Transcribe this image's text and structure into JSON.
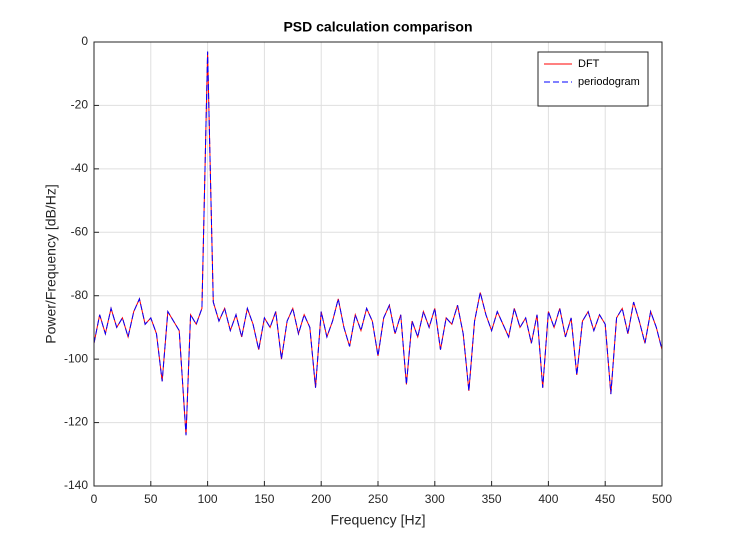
{
  "chart_data": {
    "type": "line",
    "title": "PSD calculation comparison",
    "x_label": "Frequency [Hz]",
    "y_label": "Power/Frequency [dB/Hz]",
    "x": [
      0,
      5,
      10,
      15,
      20,
      25,
      30,
      35,
      40,
      45,
      50,
      55,
      60,
      65,
      70,
      75,
      81,
      85,
      90,
      95,
      100,
      105,
      110,
      115,
      120,
      125,
      130,
      135,
      140,
      145,
      150,
      155,
      160,
      165,
      170,
      175,
      180,
      185,
      190,
      195,
      200,
      205,
      210,
      215,
      220,
      225,
      230,
      235,
      240,
      245,
      250,
      255,
      260,
      265,
      270,
      275,
      280,
      285,
      290,
      295,
      300,
      305,
      310,
      315,
      320,
      325,
      330,
      335,
      340,
      345,
      350,
      355,
      360,
      365,
      370,
      375,
      380,
      385,
      390,
      395,
      400,
      405,
      410,
      415,
      420,
      425,
      430,
      435,
      440,
      445,
      450,
      455,
      460,
      465,
      470,
      475,
      480,
      485,
      490,
      495,
      500
    ],
    "series": [
      {
        "name": "DFT",
        "color": "#ff0000",
        "dash": false,
        "values": [
          -95,
          -86,
          -92,
          -84,
          -90,
          -87,
          -93,
          -85,
          -81,
          -89,
          -87,
          -92,
          -107,
          -85,
          -88,
          -91,
          -124,
          -86,
          -89,
          -84,
          -3,
          -82,
          -88,
          -84,
          -91,
          -86,
          -93,
          -84,
          -89,
          -97,
          -87,
          -90,
          -85,
          -100,
          -88,
          -84,
          -92,
          -86,
          -90,
          -109,
          -85,
          -93,
          -88,
          -81,
          -90,
          -96,
          -86,
          -91,
          -84,
          -88,
          -99,
          -87,
          -83,
          -92,
          -86,
          -108,
          -88,
          -93,
          -85,
          -90,
          -84,
          -97,
          -87,
          -89,
          -83,
          -92,
          -110,
          -88,
          -79,
          -86,
          -91,
          -85,
          -89,
          -93,
          -84,
          -90,
          -87,
          -95,
          -86,
          -109,
          -85,
          -90,
          -84,
          -93,
          -87,
          -105,
          -88,
          -85,
          -91,
          -86,
          -89,
          -111,
          -87,
          -84,
          -92,
          -82,
          -88,
          -95,
          -85,
          -90,
          -97
        ]
      },
      {
        "name": "periodogram",
        "color": "#0000ff",
        "dash": true,
        "values": [
          -95,
          -86,
          -92,
          -84,
          -90,
          -87,
          -93,
          -85,
          -81,
          -89,
          -87,
          -92,
          -107,
          -85,
          -88,
          -91,
          -124,
          -86,
          -89,
          -84,
          -3,
          -82,
          -88,
          -84,
          -91,
          -86,
          -93,
          -84,
          -89,
          -97,
          -87,
          -90,
          -85,
          -100,
          -88,
          -84,
          -92,
          -86,
          -90,
          -109,
          -85,
          -93,
          -88,
          -81,
          -90,
          -96,
          -86,
          -91,
          -84,
          -88,
          -99,
          -87,
          -83,
          -92,
          -86,
          -108,
          -88,
          -93,
          -85,
          -90,
          -84,
          -97,
          -87,
          -89,
          -83,
          -92,
          -110,
          -88,
          -79,
          -86,
          -91,
          -85,
          -89,
          -93,
          -84,
          -90,
          -87,
          -95,
          -86,
          -109,
          -85,
          -90,
          -84,
          -93,
          -87,
          -105,
          -88,
          -85,
          -91,
          -86,
          -89,
          -111,
          -87,
          -84,
          -92,
          -82,
          -88,
          -95,
          -85,
          -90,
          -97
        ]
      }
    ],
    "xlim": [
      0,
      500
    ],
    "xticks": [
      0,
      50,
      100,
      150,
      200,
      250,
      300,
      350,
      400,
      450,
      500
    ],
    "ylim": [
      -140,
      0
    ],
    "yticks": [
      -140,
      -120,
      -100,
      -80,
      -60,
      -40,
      -20,
      0
    ],
    "grid": true,
    "legend": "northeast"
  }
}
